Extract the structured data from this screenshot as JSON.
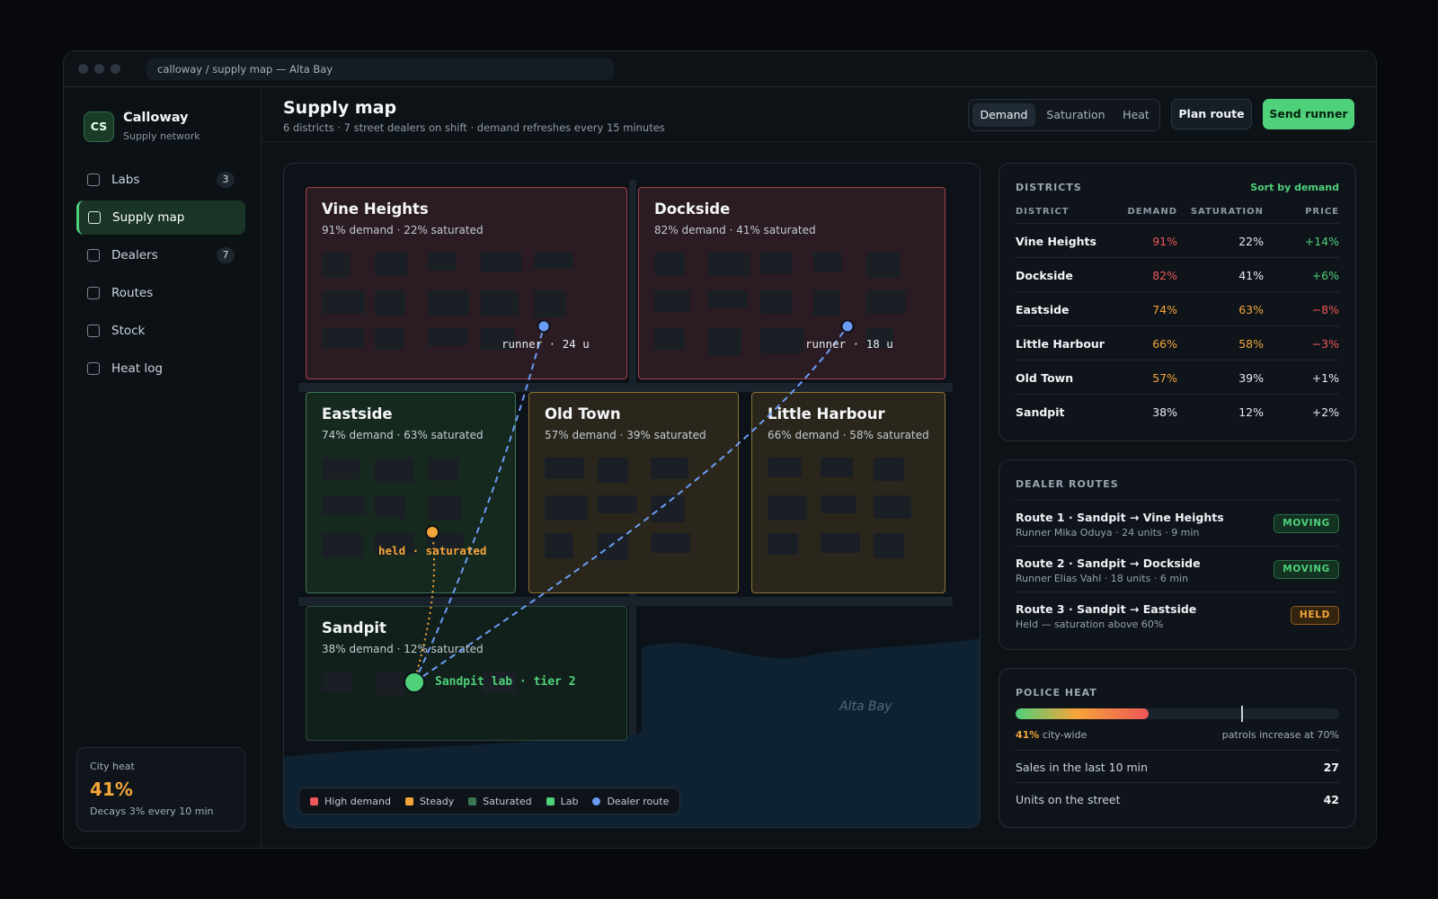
{
  "window": {
    "url": "calloway / supply map — Alta Bay"
  },
  "brand": {
    "initials": "CS",
    "name": "Calloway",
    "subtitle": "Supply network"
  },
  "nav": [
    {
      "label": "Labs",
      "count": "3",
      "active": false
    },
    {
      "label": "Supply map",
      "count": "",
      "active": true
    },
    {
      "label": "Dealers",
      "count": "7",
      "active": false
    },
    {
      "label": "Routes",
      "count": "",
      "active": false
    },
    {
      "label": "Stock",
      "count": "",
      "active": false
    },
    {
      "label": "Heat log",
      "count": "",
      "active": false
    }
  ],
  "city_heat": {
    "label": "City heat",
    "value": "41%",
    "note": "Decays 3% every 10 min"
  },
  "header": {
    "title": "Supply map",
    "subtitle": "6 districts · 7 street dealers on shift · demand refreshes every 15 minutes",
    "views": [
      "Demand",
      "Saturation",
      "Heat"
    ],
    "active_view": "Demand",
    "plan_label": "Plan route",
    "send_label": "Send runner"
  },
  "map": {
    "districts": [
      {
        "name": "Vine Heights",
        "stats": "91% demand · 22% saturated",
        "status": "high"
      },
      {
        "name": "Dockside",
        "stats": "82% demand · 41% saturated",
        "status": "high"
      },
      {
        "name": "Eastside",
        "stats": "74% demand · 63% saturated",
        "status": "saturated"
      },
      {
        "name": "Old Town",
        "stats": "57% demand · 39% saturated",
        "status": "steady"
      },
      {
        "name": "Little Harbour",
        "stats": "66% demand · 58% saturated",
        "status": "steady"
      },
      {
        "name": "Sandpit",
        "stats": "38% demand · 12% saturated",
        "status": "lab"
      }
    ],
    "markers": {
      "runner1": "runner · 24 u",
      "runner2": "runner · 18 u",
      "held": "held · saturated",
      "lab": "Sandpit lab · tier 2"
    },
    "water_label": "Alta Bay",
    "legend": [
      {
        "label": "High demand",
        "color": "#ef5757"
      },
      {
        "label": "Steady",
        "color": "#f5a53a"
      },
      {
        "label": "Saturated",
        "color": "#3a7553"
      },
      {
        "label": "Lab",
        "color": "#4fd17a"
      },
      {
        "label": "Dealer route",
        "color": "#6b9cf5"
      }
    ]
  },
  "districts_panel": {
    "title": "DISTRICTS",
    "sort_label": "Sort by demand",
    "columns": [
      "DISTRICT",
      "DEMAND",
      "SATURATION",
      "PRICE"
    ],
    "rows": [
      {
        "district": "Vine Heights",
        "demand": "91%",
        "saturation": "22%",
        "price": "+14%",
        "demand_color": "#ef5757",
        "sat_color": "#e6ebf2",
        "price_color": "#4fd17a"
      },
      {
        "district": "Dockside",
        "demand": "82%",
        "saturation": "41%",
        "price": "+6%",
        "demand_color": "#ef5757",
        "sat_color": "#e6ebf2",
        "price_color": "#4fd17a"
      },
      {
        "district": "Eastside",
        "demand": "74%",
        "saturation": "63%",
        "price": "−8%",
        "demand_color": "#f5a53a",
        "sat_color": "#f5a53a",
        "price_color": "#ef5757"
      },
      {
        "district": "Little Harbour",
        "demand": "66%",
        "saturation": "58%",
        "price": "−3%",
        "demand_color": "#f5a53a",
        "sat_color": "#f5a53a",
        "price_color": "#ef5757"
      },
      {
        "district": "Old Town",
        "demand": "57%",
        "saturation": "39%",
        "price": "+1%",
        "demand_color": "#f5a53a",
        "sat_color": "#e6ebf2",
        "price_color": "#e6ebf2"
      },
      {
        "district": "Sandpit",
        "demand": "38%",
        "saturation": "12%",
        "price": "+2%",
        "demand_color": "#e6ebf2",
        "sat_color": "#e6ebf2",
        "price_color": "#e6ebf2"
      }
    ]
  },
  "routes_panel": {
    "title": "DEALER ROUTES",
    "routes": [
      {
        "title": "Route 1 · Sandpit → Vine Heights",
        "detail": "Runner Mika Oduya · 24 units · 9 min",
        "status": "MOVING"
      },
      {
        "title": "Route 2 · Sandpit → Dockside",
        "detail": "Runner Elias Vahl · 18 units · 6 min",
        "status": "MOVING"
      },
      {
        "title": "Route 3 · Sandpit → Eastside",
        "detail": "Held — saturation above 60%",
        "status": "HELD"
      }
    ]
  },
  "heat_panel": {
    "title": "POLICE HEAT",
    "level": 0.41,
    "threshold": 0.7,
    "value": "41%",
    "value_suffix": "city-wide",
    "threshold_text": "patrols increase at 70%",
    "stats": [
      {
        "label": "Sales in the last 10 min",
        "value": "27"
      },
      {
        "label": "Units on the street",
        "value": "42"
      }
    ]
  }
}
